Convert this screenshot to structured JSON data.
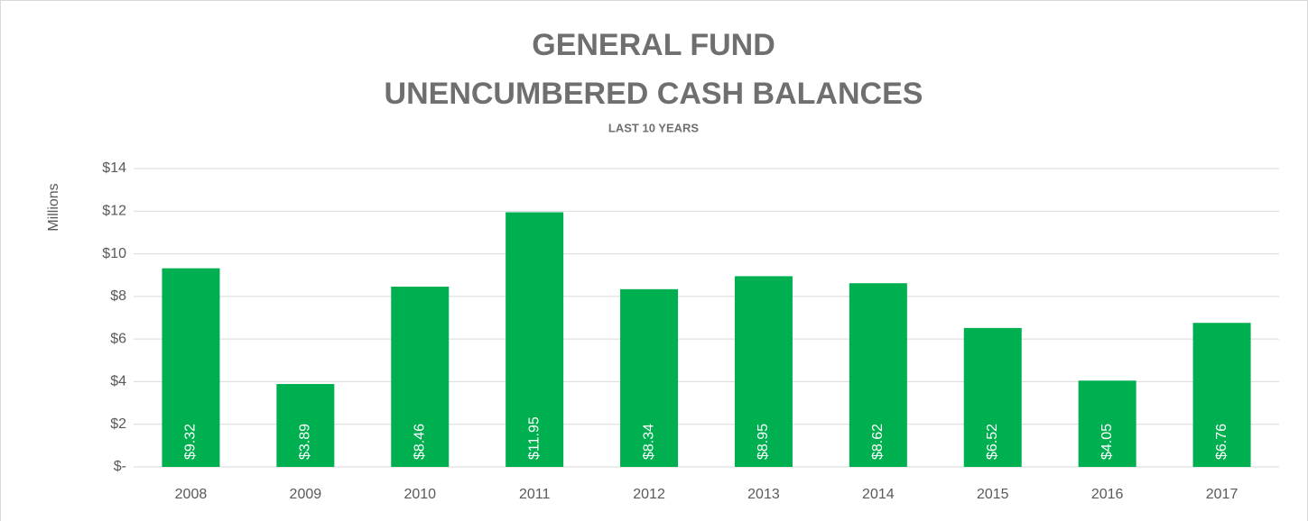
{
  "chart_data": {
    "type": "bar",
    "title": [
      "GENERAL FUND",
      "UNENCUMBERED CASH BALANCES"
    ],
    "subtitle": "LAST 10 YEARS",
    "y_label": "Millions",
    "categories": [
      "2008",
      "2009",
      "2010",
      "2011",
      "2012",
      "2013",
      "2014",
      "2015",
      "2016",
      "2017"
    ],
    "values": [
      9.32,
      3.89,
      8.46,
      11.95,
      8.34,
      8.95,
      8.62,
      6.52,
      4.05,
      6.76
    ],
    "value_labels": [
      "$9.32",
      "$3.89",
      "$8.46",
      "$11.95",
      "$8.34",
      "$8.95",
      "$8.62",
      "$6.52",
      "$4.05",
      "$6.76"
    ],
    "color": "#00b050",
    "ylim": [
      0,
      14
    ],
    "yticks": [
      {
        "value": 0,
        "label": "$-"
      },
      {
        "value": 2,
        "label": "$2"
      },
      {
        "value": 4,
        "label": "$4"
      },
      {
        "value": 6,
        "label": "$6"
      },
      {
        "value": 8,
        "label": "$8"
      },
      {
        "value": 10,
        "label": "$10"
      },
      {
        "value": 12,
        "label": "$12"
      },
      {
        "value": 14,
        "label": "$14"
      }
    ],
    "grid": true
  }
}
